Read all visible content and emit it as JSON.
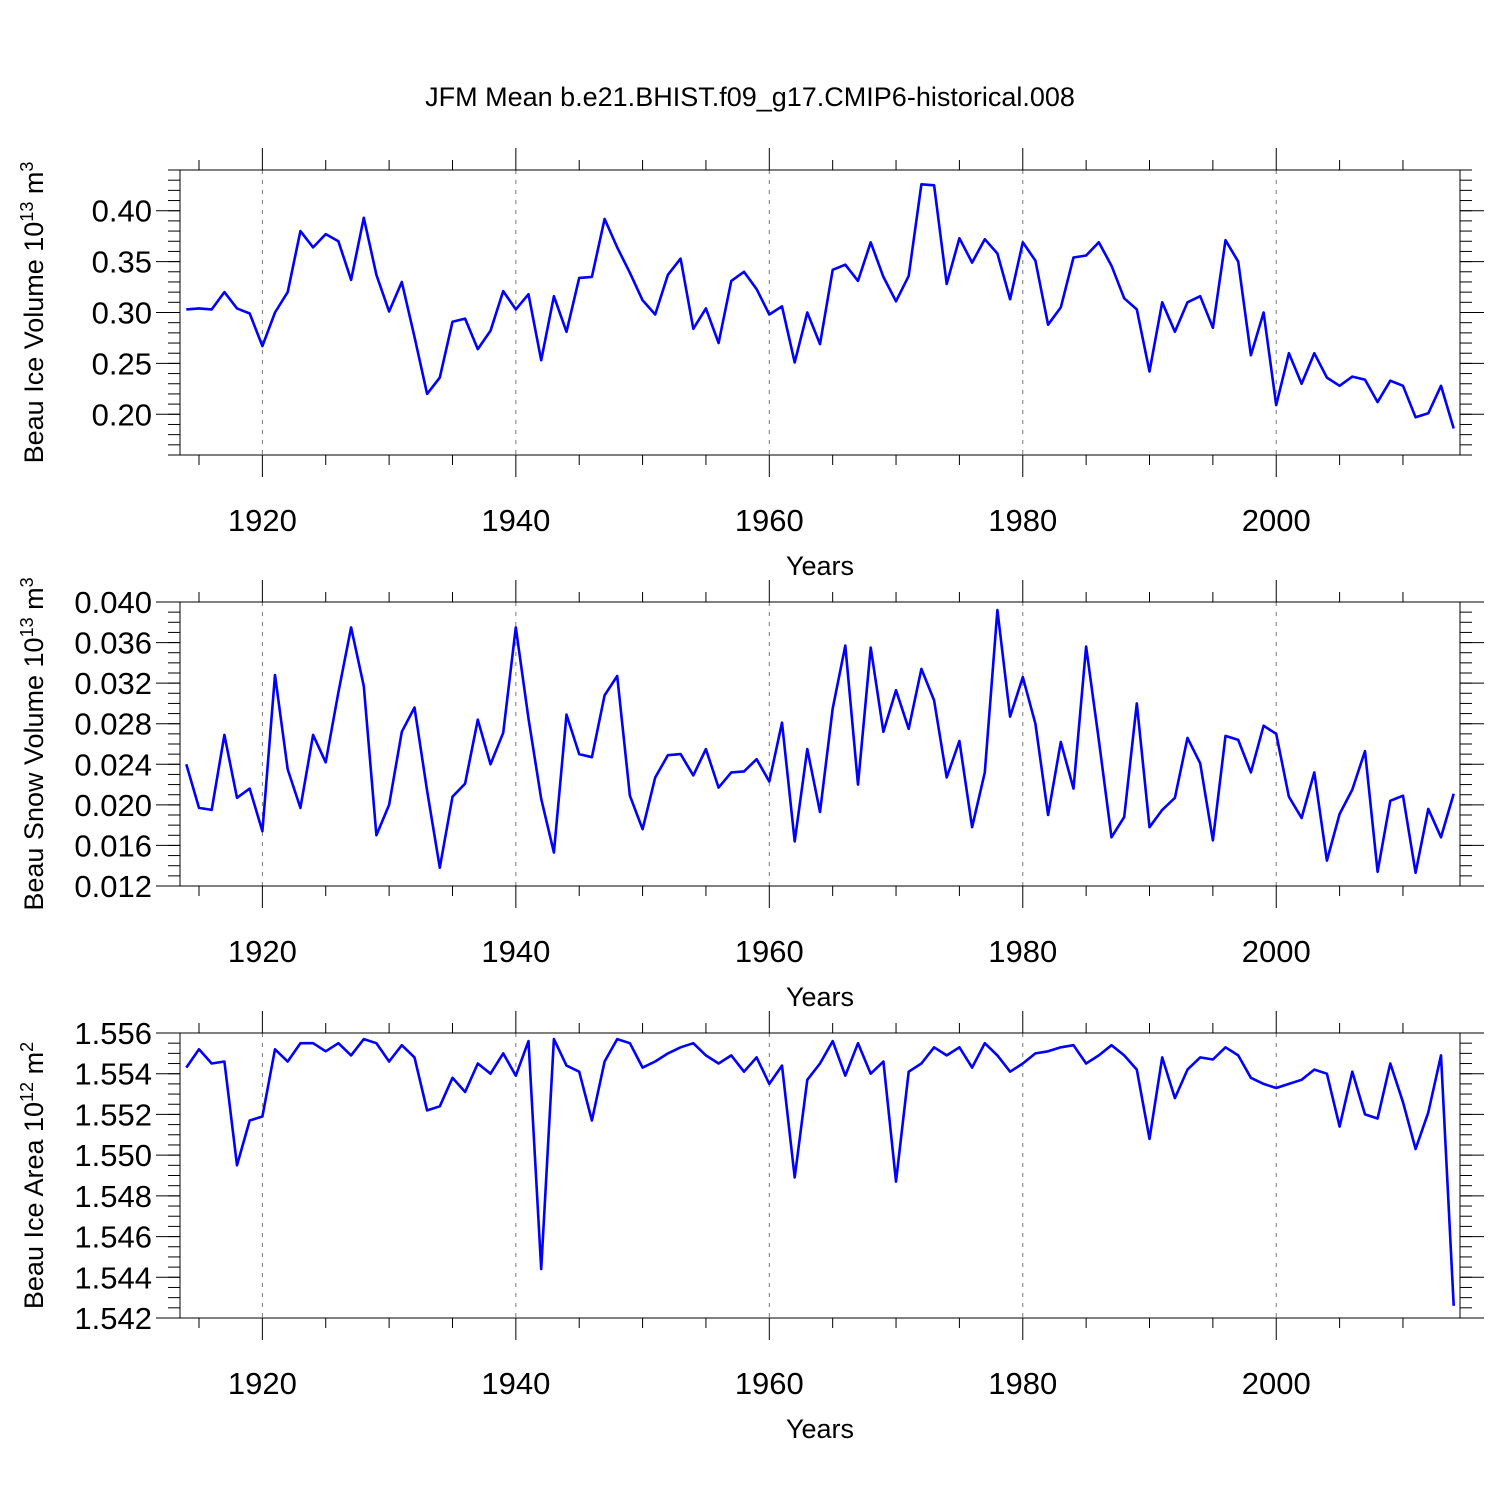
{
  "title": "JFM Mean b.e21.BHIST.f09_g17.CMIP6-historical.008",
  "colors": {
    "line": "#0000ff",
    "axis": "#000000",
    "grid": "#777777"
  },
  "chart_data": [
    {
      "type": "line",
      "name": "ice-volume",
      "ylabel": {
        "text": "Beau Ice Volume 10",
        "exp": "13",
        "unit": " m",
        "unit_exp": "3"
      },
      "xlabel": "Years",
      "xlim": [
        1913.5,
        2014.5
      ],
      "ylim": [
        0.16,
        0.44
      ],
      "yticks": [
        0.2,
        0.25,
        0.3,
        0.35,
        0.4
      ],
      "ytick_labels": [
        "0.20",
        "0.25",
        "0.30",
        "0.35",
        "0.40"
      ],
      "yminor": 0.01,
      "xticks": [
        1920,
        1940,
        1960,
        1980,
        2000
      ],
      "xtick_labels": [
        "1920",
        "1940",
        "1960",
        "1980",
        "2000"
      ],
      "x_start": 1914,
      "values": [
        0.303,
        0.304,
        0.303,
        0.32,
        0.304,
        0.299,
        0.267,
        0.3,
        0.32,
        0.38,
        0.364,
        0.377,
        0.37,
        0.332,
        0.393,
        0.337,
        0.301,
        0.33,
        0.276,
        0.22,
        0.236,
        0.291,
        0.294,
        0.264,
        0.282,
        0.321,
        0.303,
        0.318,
        0.253,
        0.316,
        0.281,
        0.334,
        0.335,
        0.392,
        0.364,
        0.339,
        0.312,
        0.298,
        0.337,
        0.353,
        0.284,
        0.304,
        0.27,
        0.331,
        0.34,
        0.323,
        0.298,
        0.306,
        0.251,
        0.3,
        0.269,
        0.342,
        0.347,
        0.331,
        0.369,
        0.335,
        0.311,
        0.336,
        0.426,
        0.425,
        0.328,
        0.373,
        0.349,
        0.372,
        0.358,
        0.313,
        0.369,
        0.351,
        0.288,
        0.305,
        0.354,
        0.356,
        0.369,
        0.346,
        0.314,
        0.303,
        0.242,
        0.31,
        0.281,
        0.31,
        0.316,
        0.285,
        0.371,
        0.35,
        0.258,
        0.3,
        0.209,
        0.26,
        0.23,
        0.26,
        0.236,
        0.228,
        0.237,
        0.234,
        0.212,
        0.233,
        0.228,
        0.197,
        0.201,
        0.228,
        0.186
      ]
    },
    {
      "type": "line",
      "name": "snow-volume",
      "ylabel": {
        "text": "Beau Snow Volume 10",
        "exp": "13",
        "unit": " m",
        "unit_exp": "3"
      },
      "xlabel": "Years",
      "xlim": [
        1913.5,
        2014.5
      ],
      "ylim": [
        0.012,
        0.04
      ],
      "yticks": [
        0.012,
        0.016,
        0.02,
        0.024,
        0.028,
        0.032,
        0.036,
        0.04
      ],
      "ytick_labels": [
        "0.012",
        "0.016",
        "0.020",
        "0.024",
        "0.028",
        "0.032",
        "0.036",
        "0.040"
      ],
      "yminor": 0.001,
      "xticks": [
        1920,
        1940,
        1960,
        1980,
        2000
      ],
      "xtick_labels": [
        "1920",
        "1940",
        "1960",
        "1980",
        "2000"
      ],
      "x_start": 1914,
      "values": [
        0.024,
        0.0197,
        0.0195,
        0.0269,
        0.0207,
        0.0216,
        0.0174,
        0.0328,
        0.0235,
        0.0197,
        0.0269,
        0.0242,
        0.0311,
        0.0375,
        0.0317,
        0.017,
        0.02,
        0.0272,
        0.0296,
        0.0214,
        0.0138,
        0.0208,
        0.0221,
        0.0284,
        0.024,
        0.0271,
        0.0375,
        0.0285,
        0.0206,
        0.0153,
        0.0289,
        0.025,
        0.0247,
        0.0308,
        0.0327,
        0.0209,
        0.0176,
        0.0227,
        0.0249,
        0.025,
        0.0229,
        0.0255,
        0.0217,
        0.0232,
        0.0233,
        0.0245,
        0.0223,
        0.0281,
        0.0164,
        0.0255,
        0.0193,
        0.0295,
        0.0357,
        0.022,
        0.0355,
        0.0272,
        0.0313,
        0.0275,
        0.0334,
        0.0303,
        0.0227,
        0.0263,
        0.0178,
        0.0232,
        0.0392,
        0.0287,
        0.0326,
        0.028,
        0.019,
        0.0262,
        0.0216,
        0.0356,
        0.0264,
        0.0168,
        0.0188,
        0.03,
        0.0178,
        0.0195,
        0.0207,
        0.0266,
        0.0241,
        0.0165,
        0.0268,
        0.0264,
        0.0232,
        0.0278,
        0.027,
        0.0208,
        0.0187,
        0.0232,
        0.0145,
        0.0191,
        0.0215,
        0.0253,
        0.0134,
        0.0204,
        0.0209,
        0.0133,
        0.0196,
        0.0168,
        0.0211
      ]
    },
    {
      "type": "line",
      "name": "ice-area",
      "ylabel": {
        "text": "Beau Ice Area 10",
        "exp": "12",
        "unit": " m",
        "unit_exp": "2"
      },
      "xlabel": "Years",
      "xlim": [
        1913.5,
        2014.5
      ],
      "ylim": [
        1.542,
        1.556
      ],
      "yticks": [
        1.542,
        1.544,
        1.546,
        1.548,
        1.55,
        1.552,
        1.554,
        1.556
      ],
      "ytick_labels": [
        "1.542",
        "1.544",
        "1.546",
        "1.548",
        "1.550",
        "1.552",
        "1.554",
        "1.556"
      ],
      "yminor": 0.0005,
      "xticks": [
        1920,
        1940,
        1960,
        1980,
        2000
      ],
      "xtick_labels": [
        "1920",
        "1940",
        "1960",
        "1980",
        "2000"
      ],
      "x_start": 1914,
      "values": [
        1.5543,
        1.5552,
        1.5545,
        1.5546,
        1.5495,
        1.5517,
        1.5519,
        1.5552,
        1.5546,
        1.5555,
        1.5555,
        1.5551,
        1.5555,
        1.5549,
        1.5557,
        1.5555,
        1.5546,
        1.5554,
        1.5548,
        1.5522,
        1.5524,
        1.5538,
        1.5531,
        1.5545,
        1.554,
        1.555,
        1.5539,
        1.5556,
        1.5444,
        1.5557,
        1.5544,
        1.5541,
        1.5517,
        1.5546,
        1.5557,
        1.5555,
        1.5543,
        1.5546,
        1.555,
        1.5553,
        1.5555,
        1.5549,
        1.5545,
        1.5549,
        1.5541,
        1.5548,
        1.5535,
        1.5544,
        1.5489,
        1.5537,
        1.5545,
        1.5556,
        1.5539,
        1.5555,
        1.554,
        1.5546,
        1.5487,
        1.5541,
        1.5545,
        1.5553,
        1.5549,
        1.5553,
        1.5543,
        1.5555,
        1.5549,
        1.5541,
        1.5545,
        1.555,
        1.5551,
        1.5553,
        1.5554,
        1.5545,
        1.5549,
        1.5554,
        1.5549,
        1.5542,
        1.5508,
        1.5548,
        1.5528,
        1.5542,
        1.5548,
        1.5547,
        1.5553,
        1.5549,
        1.5538,
        1.5535,
        1.5533,
        1.5535,
        1.5537,
        1.5542,
        1.554,
        1.5514,
        1.5541,
        1.552,
        1.5518,
        1.5545,
        1.5526,
        1.5503,
        1.5521,
        1.5549,
        1.5426
      ]
    }
  ]
}
